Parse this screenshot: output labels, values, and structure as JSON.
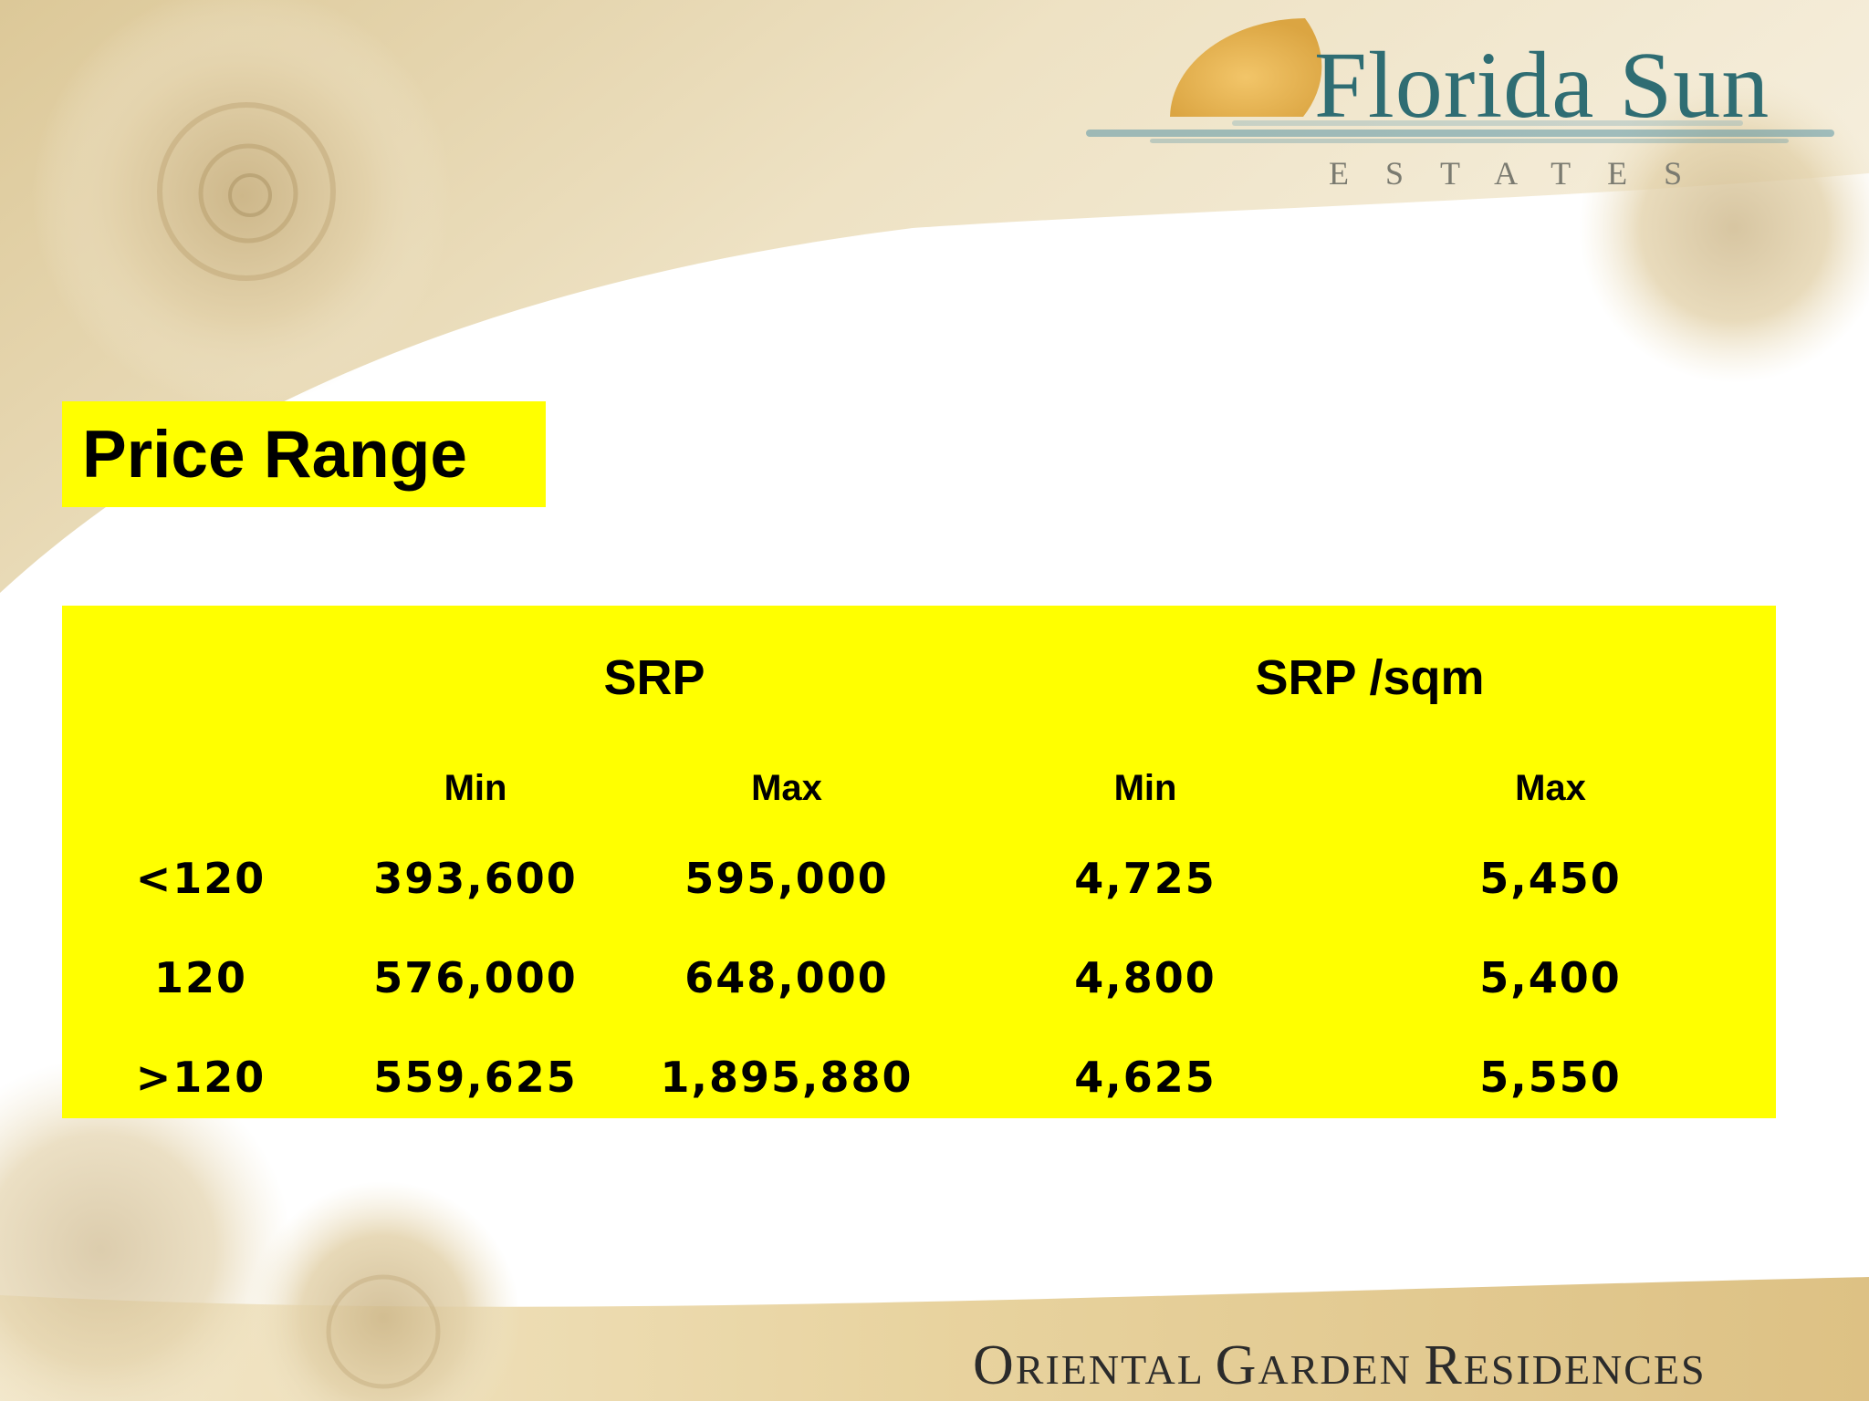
{
  "logo": {
    "name": "Florida Sun",
    "tagline": "ESTATES"
  },
  "title": "Price Range",
  "table": {
    "groups": [
      "SRP",
      "SRP /sqm"
    ],
    "subheaders": [
      "Min",
      "Max",
      "Min",
      "Max"
    ],
    "rows": [
      {
        "label": "<120",
        "values": [
          "393,600",
          "595,000",
          "4,725",
          "5,450"
        ]
      },
      {
        "label": "120",
        "values": [
          "576,000",
          "648,000",
          "4,800",
          "5,400"
        ]
      },
      {
        "label": ">120",
        "values": [
          "559,625",
          "1,895,880",
          "4,625",
          "5,550"
        ]
      }
    ]
  },
  "footer": {
    "words": [
      {
        "initial": "O",
        "rest": "RIENTAL"
      },
      {
        "initial": "G",
        "rest": "ARDEN"
      },
      {
        "initial": "R",
        "rest": "ESIDENCES"
      }
    ]
  },
  "colors": {
    "highlight": "#ffff00",
    "logo_text": "#2f6d73",
    "sun": "#e7b24e",
    "beige": "#e7d6ad"
  }
}
